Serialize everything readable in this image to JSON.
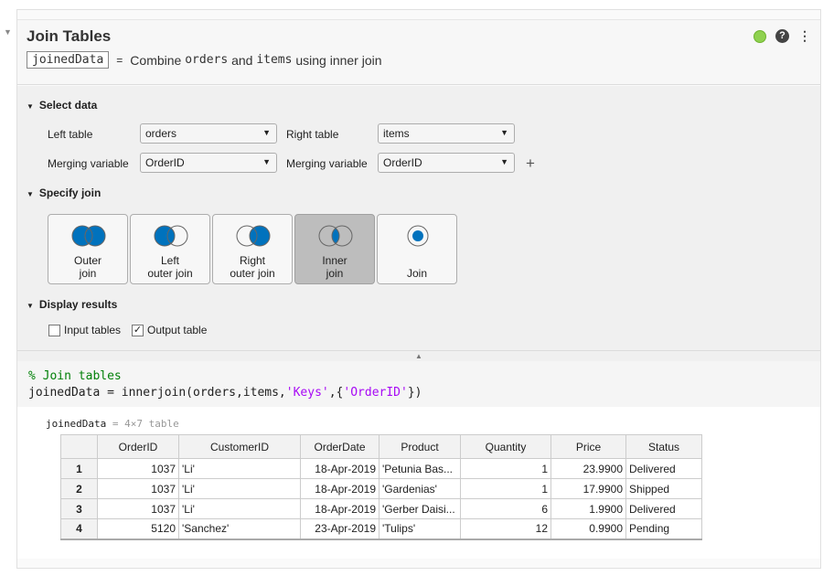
{
  "task": {
    "title": "Join Tables",
    "output_var": "joinedData",
    "summary_eq": "=",
    "summary_parts": [
      "Combine",
      "orders",
      "and",
      "items",
      "using inner join"
    ],
    "status_color": "#8fd14f"
  },
  "select_data": {
    "heading": "Select data",
    "left_table_label": "Left table",
    "left_table": "orders",
    "right_table_label": "Right table",
    "right_table": "items",
    "left_merge_label": "Merging variable",
    "left_merge": "OrderID",
    "right_merge_label": "Merging variable",
    "right_merge": "OrderID",
    "add": "+"
  },
  "specify_join": {
    "heading": "Specify join",
    "buttons": [
      {
        "l1": "Outer",
        "l2": "join"
      },
      {
        "l1": "Left",
        "l2": "outer join"
      },
      {
        "l1": "Right",
        "l2": "outer join"
      },
      {
        "l1": "Inner",
        "l2": "join",
        "selected": true
      },
      {
        "l1": "",
        "l2": "Join"
      }
    ],
    "accent": "#0072bd"
  },
  "display_results": {
    "heading": "Display results",
    "input_tables": "Input tables",
    "input_checked": false,
    "output_table": "Output table",
    "output_checked": true
  },
  "code": {
    "comment": "% Join tables",
    "pre": "joinedData = innerjoin(orders,items,",
    "s1": "'Keys'",
    "mid": ",{",
    "s2": "'OrderID'",
    "post": "})"
  },
  "output": {
    "var": "joinedData",
    "eq": "=",
    "dims": "4×7 table",
    "columns": [
      "",
      "OrderID",
      "CustomerID",
      "OrderDate",
      "Product",
      "Quantity",
      "Price",
      "Status"
    ],
    "rows": [
      [
        "1",
        "1037",
        "'Li'",
        "18-Apr-2019",
        "'Petunia Bas...",
        "1",
        "23.9900",
        "Delivered"
      ],
      [
        "2",
        "1037",
        "'Li'",
        "18-Apr-2019",
        "'Gardenias'",
        "1",
        "17.9900",
        "Shipped"
      ],
      [
        "3",
        "1037",
        "'Li'",
        "18-Apr-2019",
        "'Gerber Daisi...",
        "6",
        "1.9900",
        "Delivered"
      ],
      [
        "4",
        "5120",
        "'Sanchez'",
        "23-Apr-2019",
        "'Tulips'",
        "12",
        "0.9900",
        "Pending"
      ]
    ]
  }
}
